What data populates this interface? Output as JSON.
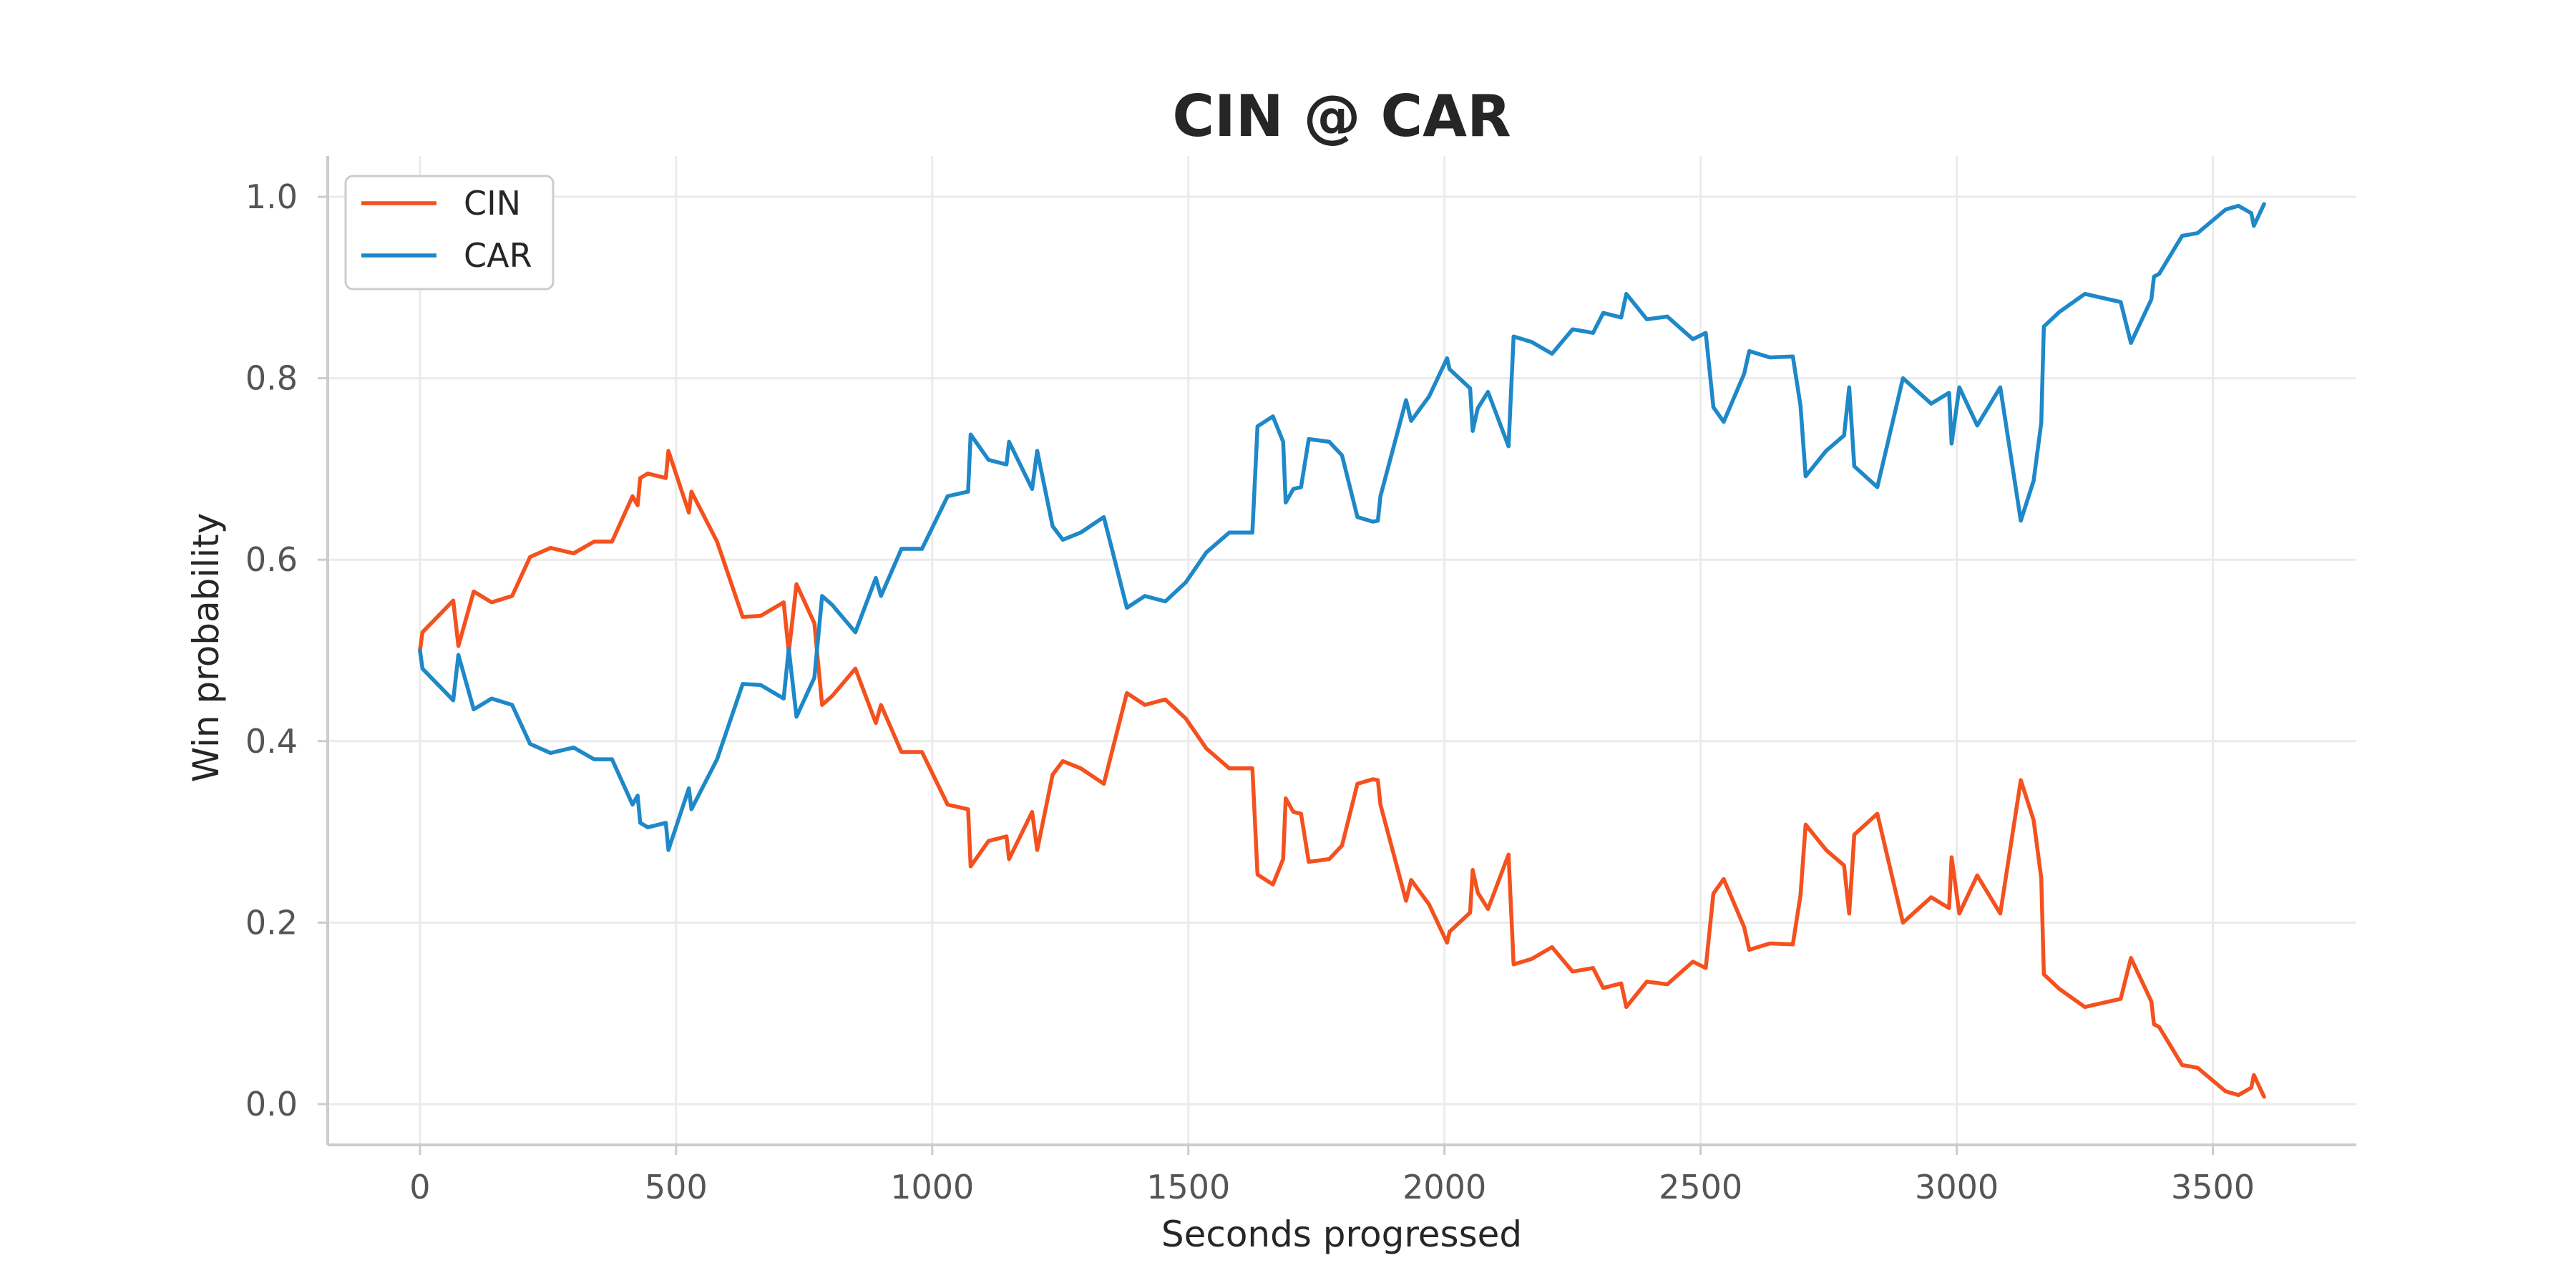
{
  "chart_data": {
    "type": "line",
    "title": "CIN @ CAR",
    "xlabel": "Seconds progressed",
    "ylabel": "Win probability",
    "xlim": [
      -180,
      3780
    ],
    "ylim": [
      -0.045,
      1.045
    ],
    "xticks": [
      0,
      500,
      1000,
      1500,
      2000,
      2500,
      3000,
      3500
    ],
    "yticks": [
      0.0,
      0.2,
      0.4,
      0.6,
      0.8,
      1.0
    ],
    "grid": true,
    "legend_position": "top-left",
    "series": [
      {
        "name": "CIN",
        "color": "#f4511e",
        "points": [
          [
            0,
            0.5
          ],
          [
            5,
            0.52
          ],
          [
            65,
            0.555
          ],
          [
            75,
            0.505
          ],
          [
            105,
            0.565
          ],
          [
            140,
            0.553
          ],
          [
            180,
            0.56
          ],
          [
            215,
            0.603
          ],
          [
            255,
            0.613
          ],
          [
            300,
            0.607
          ],
          [
            340,
            0.62
          ],
          [
            375,
            0.62
          ],
          [
            415,
            0.67
          ],
          [
            425,
            0.66
          ],
          [
            430,
            0.69
          ],
          [
            445,
            0.695
          ],
          [
            480,
            0.69
          ],
          [
            485,
            0.72
          ],
          [
            525,
            0.652
          ],
          [
            530,
            0.675
          ],
          [
            580,
            0.62
          ],
          [
            630,
            0.537
          ],
          [
            665,
            0.538
          ],
          [
            710,
            0.553
          ],
          [
            720,
            0.498
          ],
          [
            735,
            0.573
          ],
          [
            770,
            0.53
          ],
          [
            785,
            0.44
          ],
          [
            805,
            0.45
          ],
          [
            850,
            0.48
          ],
          [
            890,
            0.42
          ],
          [
            900,
            0.44
          ],
          [
            940,
            0.388
          ],
          [
            980,
            0.388
          ],
          [
            1030,
            0.33
          ],
          [
            1070,
            0.325
          ],
          [
            1075,
            0.262
          ],
          [
            1110,
            0.29
          ],
          [
            1145,
            0.295
          ],
          [
            1150,
            0.27
          ],
          [
            1195,
            0.322
          ],
          [
            1205,
            0.28
          ],
          [
            1235,
            0.363
          ],
          [
            1255,
            0.378
          ],
          [
            1290,
            0.37
          ],
          [
            1335,
            0.353
          ],
          [
            1380,
            0.453
          ],
          [
            1415,
            0.44
          ],
          [
            1455,
            0.446
          ],
          [
            1495,
            0.425
          ],
          [
            1535,
            0.392
          ],
          [
            1580,
            0.37
          ],
          [
            1625,
            0.37
          ],
          [
            1635,
            0.253
          ],
          [
            1665,
            0.242
          ],
          [
            1685,
            0.27
          ],
          [
            1690,
            0.337
          ],
          [
            1705,
            0.322
          ],
          [
            1720,
            0.32
          ],
          [
            1735,
            0.267
          ],
          [
            1775,
            0.27
          ],
          [
            1800,
            0.285
          ],
          [
            1830,
            0.353
          ],
          [
            1860,
            0.358
          ],
          [
            1870,
            0.357
          ],
          [
            1875,
            0.33
          ],
          [
            1925,
            0.224
          ],
          [
            1935,
            0.247
          ],
          [
            1970,
            0.22
          ],
          [
            2005,
            0.178
          ],
          [
            2010,
            0.19
          ],
          [
            2050,
            0.211
          ],
          [
            2055,
            0.258
          ],
          [
            2065,
            0.233
          ],
          [
            2085,
            0.215
          ],
          [
            2125,
            0.275
          ],
          [
            2135,
            0.154
          ],
          [
            2170,
            0.16
          ],
          [
            2210,
            0.173
          ],
          [
            2250,
            0.146
          ],
          [
            2290,
            0.15
          ],
          [
            2310,
            0.128
          ],
          [
            2345,
            0.133
          ],
          [
            2355,
            0.107
          ],
          [
            2395,
            0.135
          ],
          [
            2435,
            0.132
          ],
          [
            2485,
            0.157
          ],
          [
            2510,
            0.15
          ],
          [
            2525,
            0.232
          ],
          [
            2545,
            0.248
          ],
          [
            2585,
            0.195
          ],
          [
            2595,
            0.17
          ],
          [
            2635,
            0.177
          ],
          [
            2680,
            0.176
          ],
          [
            2695,
            0.23
          ],
          [
            2705,
            0.308
          ],
          [
            2745,
            0.28
          ],
          [
            2780,
            0.263
          ],
          [
            2790,
            0.21
          ],
          [
            2800,
            0.297
          ],
          [
            2845,
            0.32
          ],
          [
            2895,
            0.2
          ],
          [
            2950,
            0.228
          ],
          [
            2985,
            0.216
          ],
          [
            2990,
            0.272
          ],
          [
            3005,
            0.21
          ],
          [
            3040,
            0.252
          ],
          [
            3085,
            0.21
          ],
          [
            3125,
            0.357
          ],
          [
            3150,
            0.313
          ],
          [
            3165,
            0.249
          ],
          [
            3170,
            0.143
          ],
          [
            3200,
            0.127
          ],
          [
            3250,
            0.107
          ],
          [
            3320,
            0.116
          ],
          [
            3340,
            0.161
          ],
          [
            3380,
            0.113
          ],
          [
            3385,
            0.088
          ],
          [
            3395,
            0.085
          ],
          [
            3440,
            0.043
          ],
          [
            3470,
            0.04
          ],
          [
            3525,
            0.014
          ],
          [
            3550,
            0.01
          ],
          [
            3575,
            0.018
          ],
          [
            3580,
            0.032
          ],
          [
            3600,
            0.008
          ]
        ]
      },
      {
        "name": "CAR",
        "color": "#1e88c8",
        "points": [
          [
            0,
            0.5
          ],
          [
            5,
            0.48
          ],
          [
            65,
            0.445
          ],
          [
            75,
            0.495
          ],
          [
            105,
            0.435
          ],
          [
            140,
            0.447
          ],
          [
            180,
            0.44
          ],
          [
            215,
            0.397
          ],
          [
            255,
            0.387
          ],
          [
            300,
            0.393
          ],
          [
            340,
            0.38
          ],
          [
            375,
            0.38
          ],
          [
            415,
            0.33
          ],
          [
            425,
            0.34
          ],
          [
            430,
            0.31
          ],
          [
            445,
            0.305
          ],
          [
            480,
            0.31
          ],
          [
            485,
            0.28
          ],
          [
            525,
            0.348
          ],
          [
            530,
            0.325
          ],
          [
            580,
            0.38
          ],
          [
            630,
            0.463
          ],
          [
            665,
            0.462
          ],
          [
            710,
            0.447
          ],
          [
            720,
            0.502
          ],
          [
            735,
            0.427
          ],
          [
            770,
            0.47
          ],
          [
            785,
            0.56
          ],
          [
            805,
            0.55
          ],
          [
            850,
            0.52
          ],
          [
            890,
            0.58
          ],
          [
            900,
            0.56
          ],
          [
            940,
            0.612
          ],
          [
            980,
            0.612
          ],
          [
            1030,
            0.67
          ],
          [
            1070,
            0.675
          ],
          [
            1075,
            0.738
          ],
          [
            1110,
            0.71
          ],
          [
            1145,
            0.705
          ],
          [
            1150,
            0.73
          ],
          [
            1195,
            0.678
          ],
          [
            1205,
            0.72
          ],
          [
            1235,
            0.637
          ],
          [
            1255,
            0.622
          ],
          [
            1290,
            0.63
          ],
          [
            1335,
            0.647
          ],
          [
            1380,
            0.547
          ],
          [
            1415,
            0.56
          ],
          [
            1455,
            0.554
          ],
          [
            1495,
            0.575
          ],
          [
            1535,
            0.608
          ],
          [
            1580,
            0.63
          ],
          [
            1625,
            0.63
          ],
          [
            1635,
            0.747
          ],
          [
            1665,
            0.758
          ],
          [
            1685,
            0.73
          ],
          [
            1690,
            0.663
          ],
          [
            1705,
            0.678
          ],
          [
            1720,
            0.68
          ],
          [
            1735,
            0.733
          ],
          [
            1775,
            0.73
          ],
          [
            1800,
            0.715
          ],
          [
            1830,
            0.647
          ],
          [
            1860,
            0.642
          ],
          [
            1870,
            0.643
          ],
          [
            1875,
            0.67
          ],
          [
            1925,
            0.776
          ],
          [
            1935,
            0.753
          ],
          [
            1970,
            0.78
          ],
          [
            2005,
            0.822
          ],
          [
            2010,
            0.81
          ],
          [
            2050,
            0.789
          ],
          [
            2055,
            0.742
          ],
          [
            2065,
            0.767
          ],
          [
            2085,
            0.785
          ],
          [
            2125,
            0.725
          ],
          [
            2135,
            0.846
          ],
          [
            2170,
            0.84
          ],
          [
            2210,
            0.827
          ],
          [
            2250,
            0.854
          ],
          [
            2290,
            0.85
          ],
          [
            2310,
            0.872
          ],
          [
            2345,
            0.867
          ],
          [
            2355,
            0.893
          ],
          [
            2395,
            0.865
          ],
          [
            2435,
            0.868
          ],
          [
            2485,
            0.843
          ],
          [
            2510,
            0.85
          ],
          [
            2525,
            0.768
          ],
          [
            2545,
            0.752
          ],
          [
            2585,
            0.805
          ],
          [
            2595,
            0.83
          ],
          [
            2635,
            0.823
          ],
          [
            2680,
            0.824
          ],
          [
            2695,
            0.77
          ],
          [
            2705,
            0.692
          ],
          [
            2745,
            0.72
          ],
          [
            2780,
            0.737
          ],
          [
            2790,
            0.79
          ],
          [
            2800,
            0.703
          ],
          [
            2845,
            0.68
          ],
          [
            2895,
            0.8
          ],
          [
            2950,
            0.772
          ],
          [
            2985,
            0.784
          ],
          [
            2990,
            0.728
          ],
          [
            3005,
            0.79
          ],
          [
            3040,
            0.748
          ],
          [
            3085,
            0.79
          ],
          [
            3125,
            0.643
          ],
          [
            3150,
            0.687
          ],
          [
            3165,
            0.751
          ],
          [
            3170,
            0.857
          ],
          [
            3200,
            0.873
          ],
          [
            3250,
            0.893
          ],
          [
            3320,
            0.884
          ],
          [
            3340,
            0.839
          ],
          [
            3380,
            0.887
          ],
          [
            3385,
            0.912
          ],
          [
            3395,
            0.915
          ],
          [
            3440,
            0.957
          ],
          [
            3470,
            0.96
          ],
          [
            3525,
            0.986
          ],
          [
            3550,
            0.99
          ],
          [
            3575,
            0.982
          ],
          [
            3580,
            0.968
          ],
          [
            3600,
            0.992
          ]
        ]
      }
    ]
  }
}
